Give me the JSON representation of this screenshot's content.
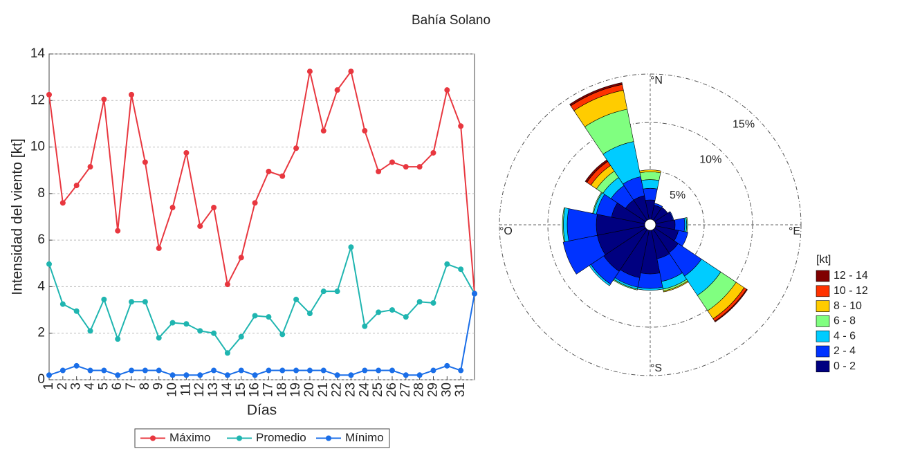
{
  "title": "Bahía Solano",
  "chart_data": [
    {
      "type": "line",
      "xlabel": "Días",
      "ylabel": "Intensidad del viento [kt]",
      "x": [
        1,
        2,
        3,
        4,
        5,
        6,
        7,
        8,
        9,
        10,
        11,
        12,
        13,
        14,
        15,
        16,
        17,
        18,
        19,
        20,
        21,
        22,
        23,
        24,
        25,
        26,
        27,
        28,
        29,
        30,
        31,
        32
      ],
      "xlim": [
        1,
        32
      ],
      "xticks": [
        1,
        2,
        3,
        4,
        5,
        6,
        7,
        8,
        9,
        10,
        11,
        12,
        13,
        14,
        15,
        16,
        17,
        18,
        19,
        20,
        21,
        22,
        23,
        24,
        25,
        26,
        27,
        28,
        29,
        30,
        31
      ],
      "ylim": [
        0,
        14
      ],
      "yticks": [
        0,
        2,
        4,
        6,
        8,
        10,
        12,
        14
      ],
      "grid": true,
      "legend": "bottom",
      "series": [
        {
          "name": "Máximo",
          "color": "#e8373f",
          "values": [
            12.25,
            7.6,
            8.35,
            9.15,
            12.05,
            6.4,
            12.25,
            9.35,
            5.65,
            7.4,
            9.75,
            6.6,
            7.4,
            4.1,
            5.25,
            7.6,
            8.95,
            8.75,
            9.95,
            13.25,
            10.7,
            12.45,
            13.25,
            10.7,
            8.95,
            9.35,
            9.15,
            9.15,
            9.75,
            12.45,
            10.9,
            3.7
          ]
        },
        {
          "name": "Promedio",
          "color": "#1fb5b0",
          "values": [
            4.97,
            3.25,
            2.95,
            2.1,
            3.45,
            1.75,
            3.35,
            3.35,
            1.8,
            2.45,
            2.4,
            2.1,
            2.0,
            1.15,
            1.85,
            2.75,
            2.7,
            1.95,
            3.45,
            2.85,
            3.8,
            3.8,
            5.7,
            2.3,
            2.9,
            3.0,
            2.7,
            3.35,
            3.3,
            4.97,
            4.75,
            3.7
          ]
        },
        {
          "name": "Mínimo",
          "color": "#1a6ee8",
          "values": [
            0.2,
            0.4,
            0.6,
            0.4,
            0.4,
            0.2,
            0.4,
            0.4,
            0.4,
            0.2,
            0.2,
            0.2,
            0.4,
            0.2,
            0.4,
            0.2,
            0.4,
            0.4,
            0.4,
            0.4,
            0.4,
            0.2,
            0.2,
            0.4,
            0.4,
            0.4,
            0.2,
            0.2,
            0.4,
            0.6,
            0.4,
            3.7
          ]
        }
      ]
    },
    {
      "type": "windrose",
      "legend_title": "[kt]",
      "directions": [
        0,
        22.5,
        45,
        67.5,
        90,
        112.5,
        135,
        157.5,
        180,
        202.5,
        225,
        247.5,
        270,
        292.5,
        315,
        337.5
      ],
      "direction_labels": [
        {
          "value": 0,
          "label": "°N"
        },
        {
          "value": 90,
          "label": "°E"
        },
        {
          "value": 180,
          "label": "°S"
        },
        {
          "value": 270,
          "label": "°O"
        }
      ],
      "rlim": [
        0,
        15
      ],
      "rticks": [
        {
          "value": 5,
          "label": "5%"
        },
        {
          "value": 10,
          "label": "10%"
        },
        {
          "value": 15,
          "label": "15%"
        }
      ],
      "series": [
        {
          "name": "0 - 2",
          "color": "#000080",
          "values": [
            2.0,
            1.5,
            1.6,
            1.8,
            2.0,
            2.4,
            2.9,
            3.0,
            4.5,
            5.0,
            5.2,
            5.0,
            5.0,
            3.5,
            2.5,
            2.5
          ]
        },
        {
          "name": "2 - 4",
          "color": "#0033ff",
          "values": [
            1.2,
            0.2,
            0,
            0.1,
            1.0,
            1.0,
            2.9,
            2.4,
            1.5,
            1.0,
            1.6,
            3.6,
            3.0,
            1.6,
            1.8,
            2.0
          ]
        },
        {
          "name": "4 - 6",
          "color": "#00ccff",
          "values": [
            0.9,
            0,
            0,
            0,
            0.2,
            0,
            2.4,
            0.8,
            0.2,
            0.2,
            0.2,
            0,
            0.4,
            0.3,
            1.0,
            3.7
          ]
        },
        {
          "name": "6 - 8",
          "color": "#80ff80",
          "values": [
            0.8,
            0,
            0,
            0,
            0.1,
            0,
            1.9,
            0.2,
            0,
            0.1,
            0,
            0,
            0.1,
            0.1,
            0.8,
            3.4
          ]
        },
        {
          "name": "8 - 10",
          "color": "#ffcc00",
          "values": [
            0.2,
            0,
            0,
            0,
            0,
            0,
            1.0,
            0.1,
            0,
            0,
            0,
            0,
            0,
            0,
            0.7,
            2.0
          ]
        },
        {
          "name": "10 - 12",
          "color": "#ff3300",
          "values": [
            0,
            0,
            0,
            0,
            0,
            0,
            0.3,
            0,
            0,
            0,
            0,
            0,
            0,
            0,
            0.5,
            0.6
          ]
        },
        {
          "name": "12 - 14",
          "color": "#800000",
          "values": [
            0,
            0,
            0,
            0,
            0,
            0,
            0.1,
            0,
            0,
            0,
            0,
            0,
            0,
            0,
            0.2,
            0.2
          ]
        }
      ]
    }
  ]
}
